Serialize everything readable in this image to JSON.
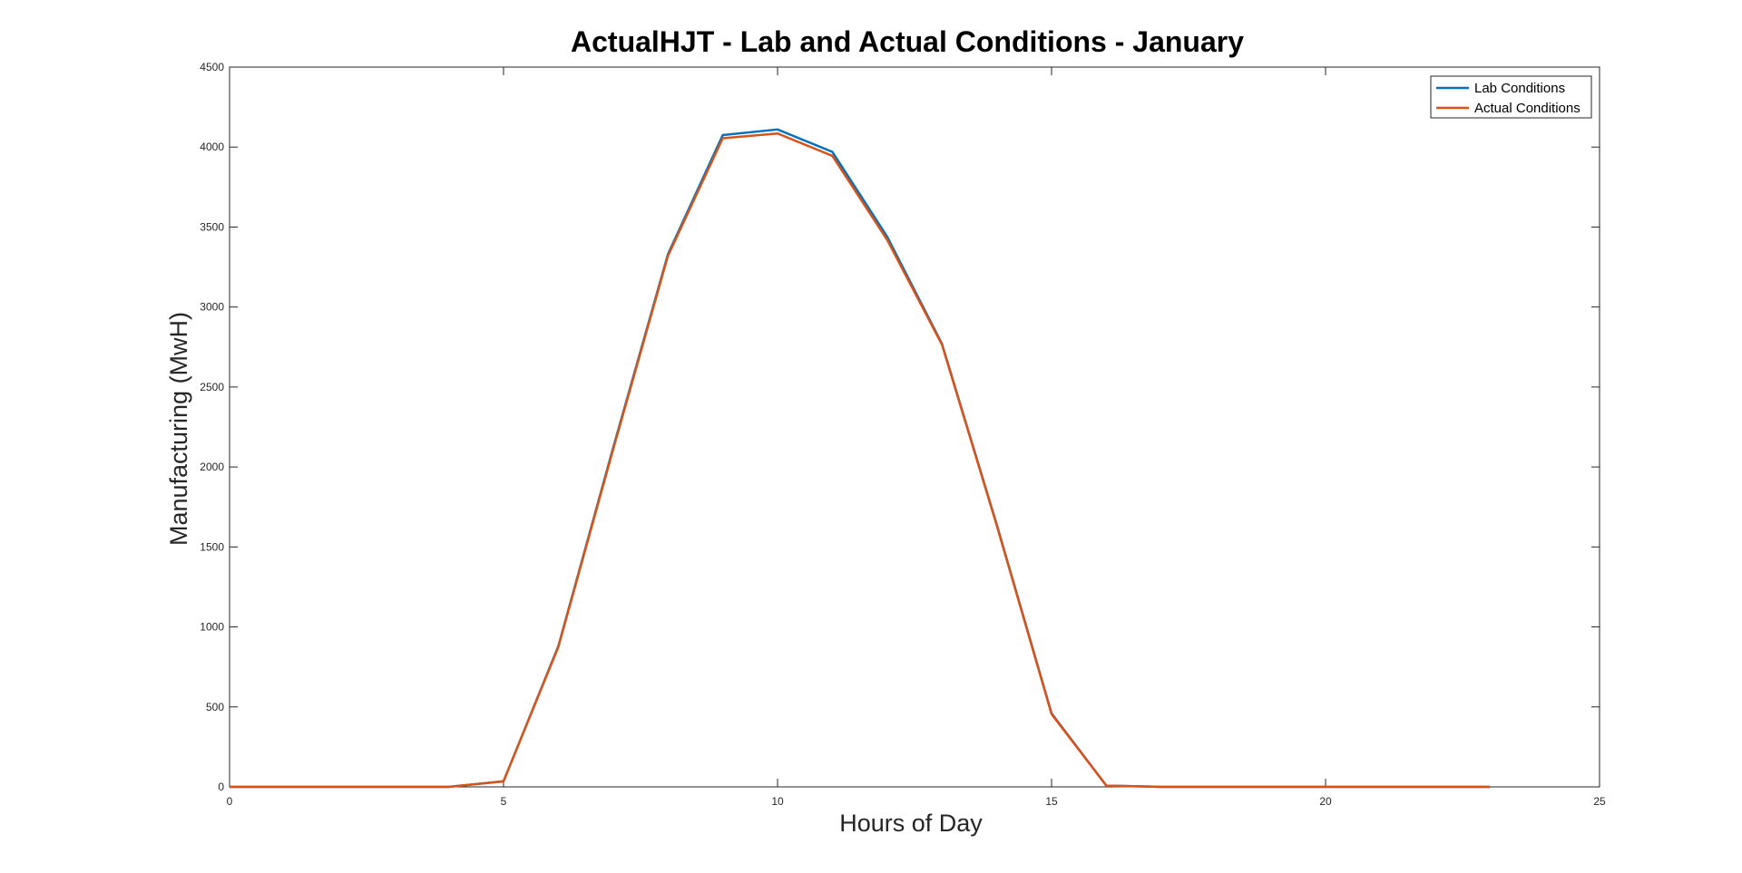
{
  "chart_data": {
    "type": "line",
    "title": "ActualHJT - Lab and Actual Conditions - January",
    "xlabel": "Hours of Day",
    "ylabel": "Manufacturing (MwH)",
    "xlim": [
      0,
      25
    ],
    "ylim": [
      0,
      4500
    ],
    "xticks": [
      0,
      5,
      10,
      15,
      20,
      25
    ],
    "yticks": [
      0,
      500,
      1000,
      1500,
      2000,
      2500,
      3000,
      3500,
      4000,
      4500
    ],
    "grid": false,
    "legend_position": "top-right",
    "x": [
      0,
      1,
      2,
      3,
      4,
      5,
      6,
      7,
      8,
      9,
      10,
      11,
      12,
      13,
      14,
      15,
      16,
      17,
      18,
      19,
      20,
      21,
      22,
      23
    ],
    "series": [
      {
        "name": "Lab Conditions",
        "color": "#0072BD",
        "values": [
          0,
          0,
          0,
          0,
          0,
          35,
          880,
          2120,
          3330,
          4075,
          4110,
          3970,
          3440,
          2770,
          1640,
          460,
          8,
          0,
          0,
          0,
          0,
          0,
          0,
          0
        ]
      },
      {
        "name": "Actual Conditions",
        "color": "#D95319",
        "values": [
          0,
          0,
          0,
          0,
          0,
          35,
          875,
          2110,
          3320,
          4055,
          4085,
          3945,
          3420,
          2765,
          1635,
          455,
          8,
          0,
          0,
          0,
          0,
          0,
          0,
          0
        ]
      }
    ]
  }
}
